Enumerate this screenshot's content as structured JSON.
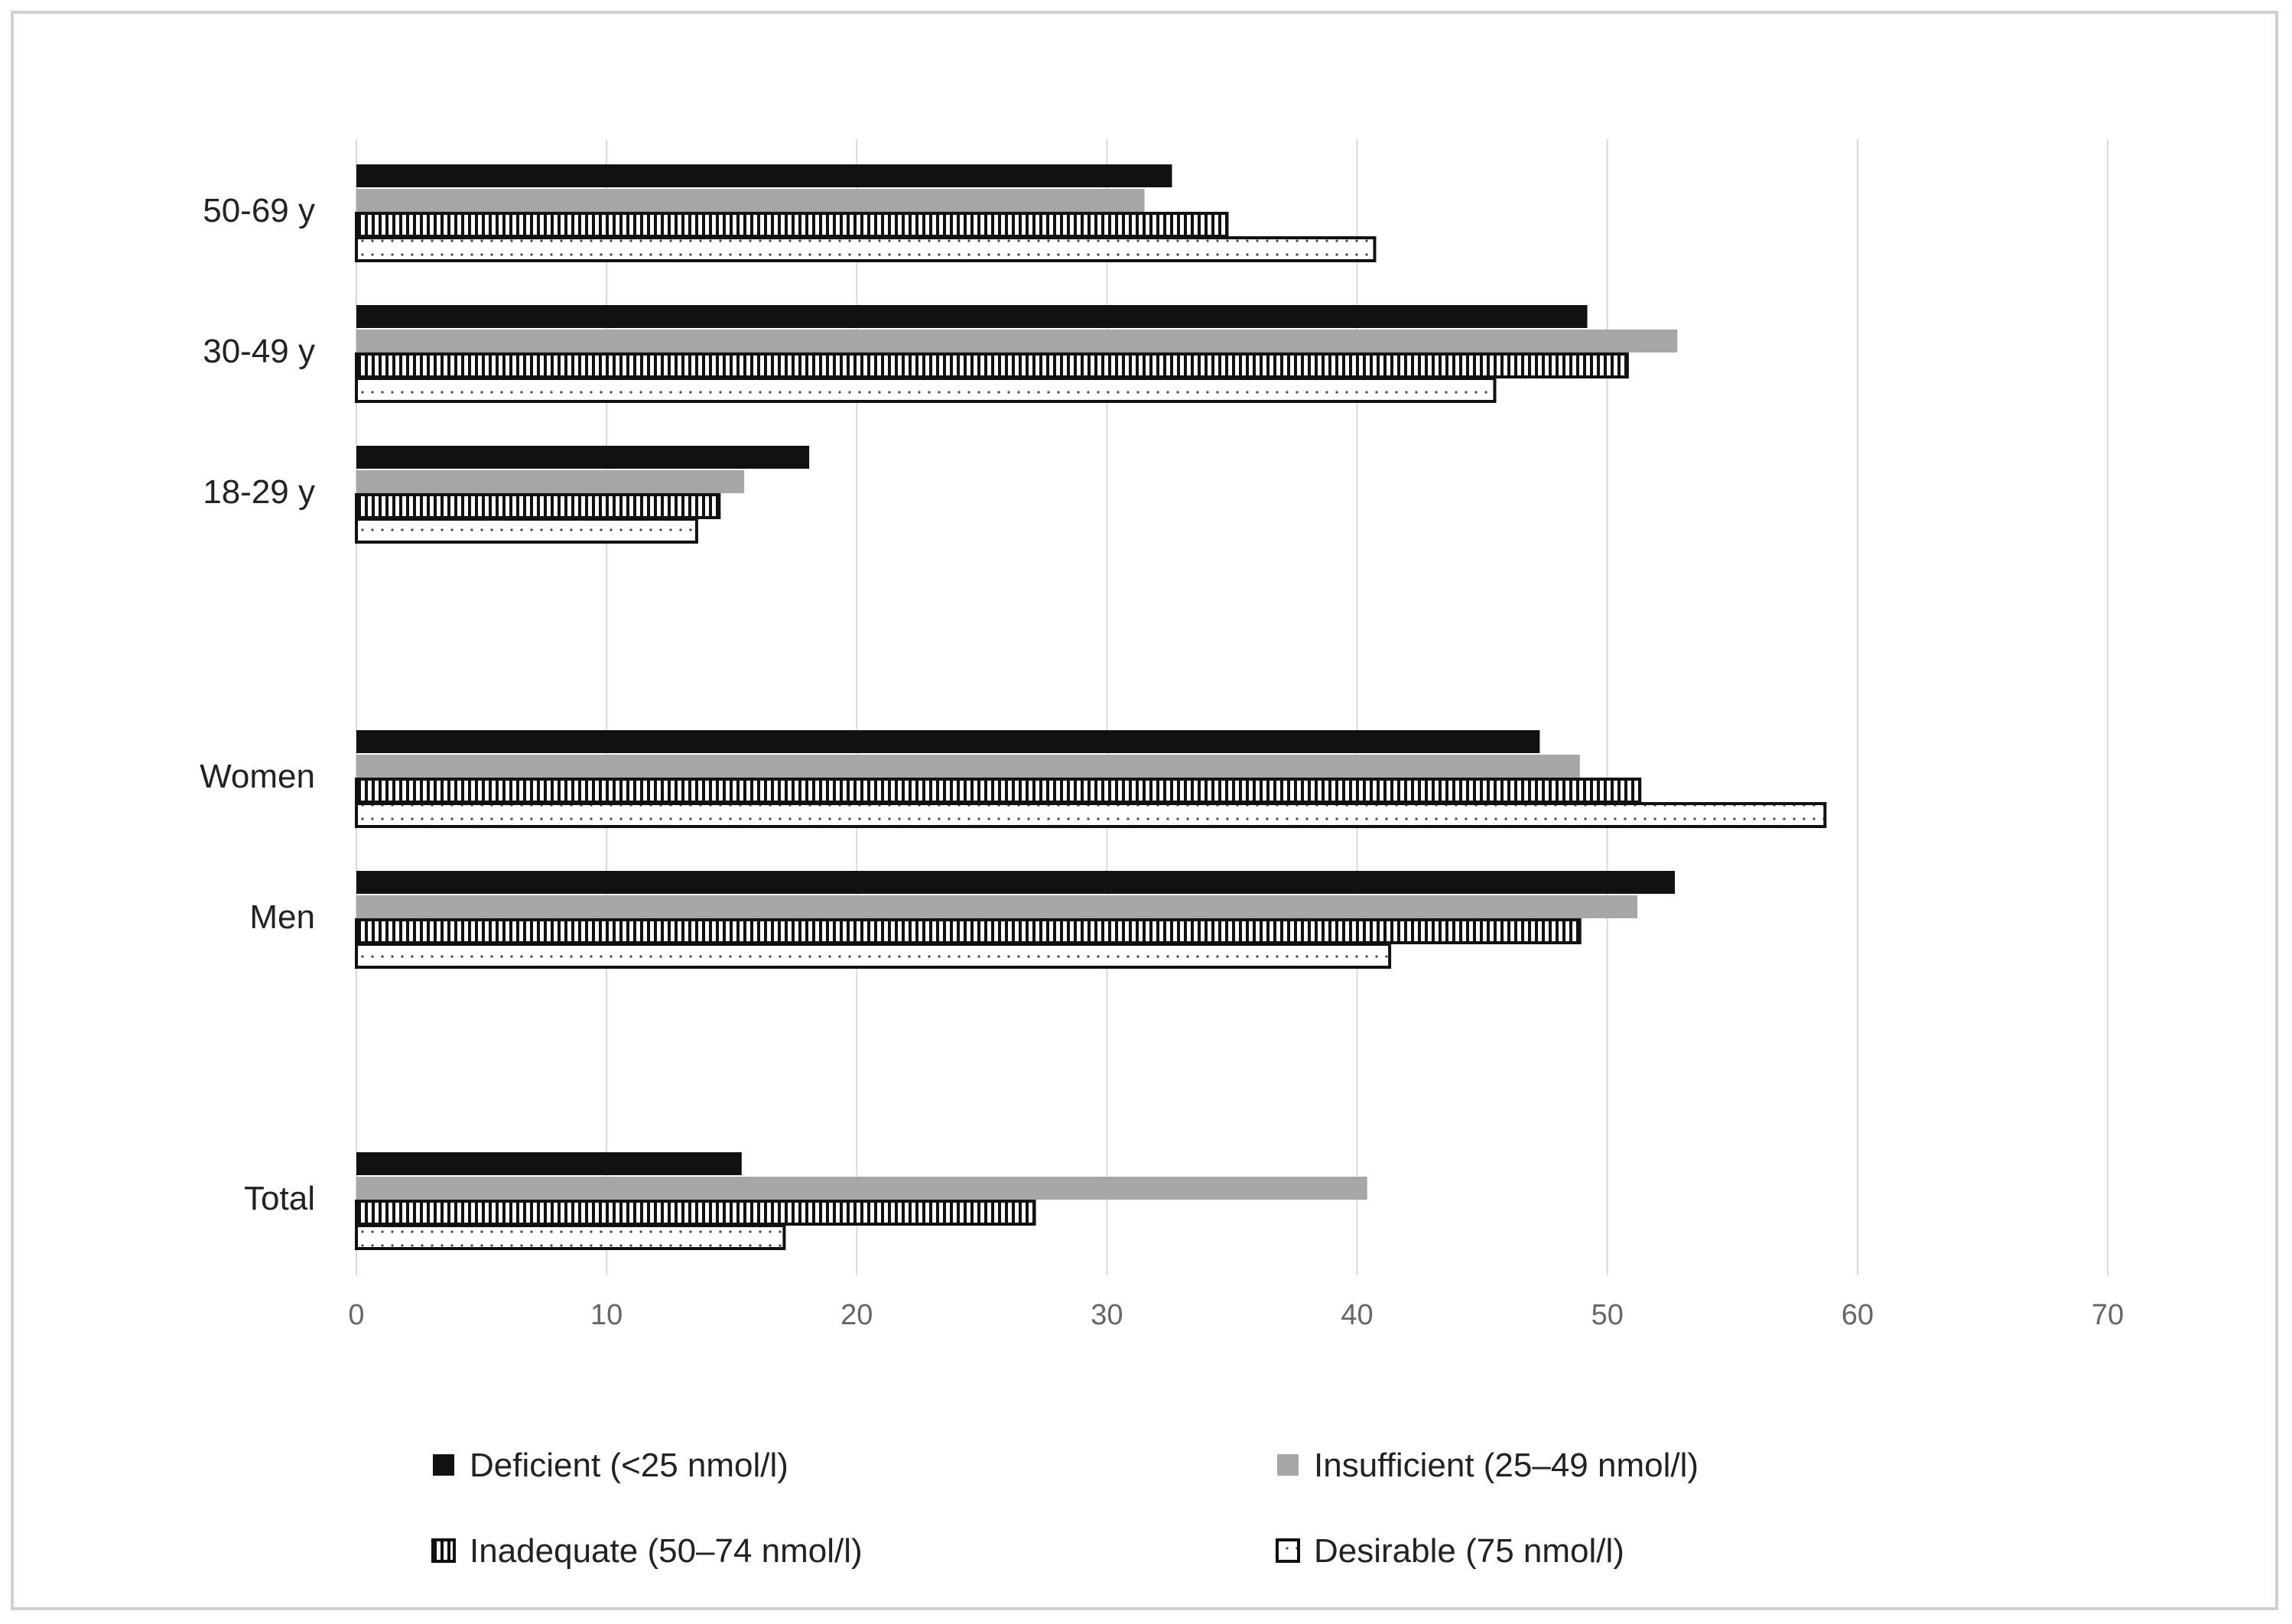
{
  "chart_data": {
    "type": "bar",
    "orientation": "horizontal",
    "title": "",
    "xlabel": "",
    "ylabel": "",
    "xlim": [
      0,
      70
    ],
    "x_ticks": [
      0,
      10,
      20,
      30,
      40,
      50,
      60,
      70
    ],
    "grid": "vertical",
    "legend_position": "bottom",
    "groups": [
      {
        "label": "50-69 y",
        "values": [
          32.6,
          31.5,
          34.8,
          40.7
        ]
      },
      {
        "label": "30-49 y",
        "values": [
          49.2,
          52.8,
          50.8,
          45.5
        ]
      },
      {
        "label": "18-29 y",
        "values": [
          18.1,
          15.5,
          14.5,
          13.6
        ]
      },
      {
        "label": "Women",
        "values": [
          47.3,
          48.9,
          51.3,
          58.7
        ]
      },
      {
        "label": "Men",
        "values": [
          52.7,
          51.2,
          48.9,
          41.3
        ]
      },
      {
        "label": "Total",
        "values": [
          15.4,
          40.4,
          27.1,
          17.1
        ]
      }
    ],
    "series": [
      {
        "name": "Deficient (<25 nmol/l)",
        "style": "solid-black",
        "color": "#111111"
      },
      {
        "name": "Insufficient (25–49 nmol/l)",
        "style": "solid-gray",
        "color": "#a6a6a6"
      },
      {
        "name": "Inadequate (50–74 nmol/l)",
        "style": "vertical-stripes",
        "color": "#111111"
      },
      {
        "name": "Desirable (75 nmol/l)",
        "style": "dotted",
        "color": "#111111"
      }
    ]
  }
}
